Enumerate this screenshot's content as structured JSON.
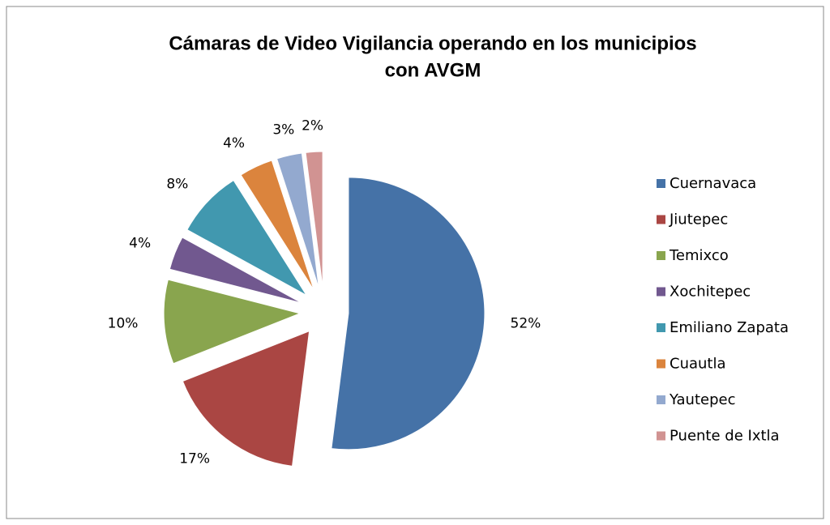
{
  "chart_data": {
    "type": "pie",
    "title": [
      "Cámaras de Video Vigilancia operando en los municipios",
      "con AVGM"
    ],
    "categories": [
      "Cuernavaca",
      "Jiutepec",
      "Temixco",
      "Xochitepec",
      "Emiliano Zapata",
      "Cuautla",
      "Yautepec",
      "Puente de Ixtla"
    ],
    "values": [
      52,
      17,
      10,
      4,
      8,
      4,
      3,
      2
    ],
    "value_labels": [
      "52%",
      "17%",
      "10%",
      "4%",
      "8%",
      "4%",
      "3%",
      "2%"
    ],
    "colors": [
      "#4572a7",
      "#aa4643",
      "#89a54e",
      "#71588f",
      "#4198af",
      "#db843d",
      "#93a9cf",
      "#d19392"
    ],
    "legend": "right"
  }
}
